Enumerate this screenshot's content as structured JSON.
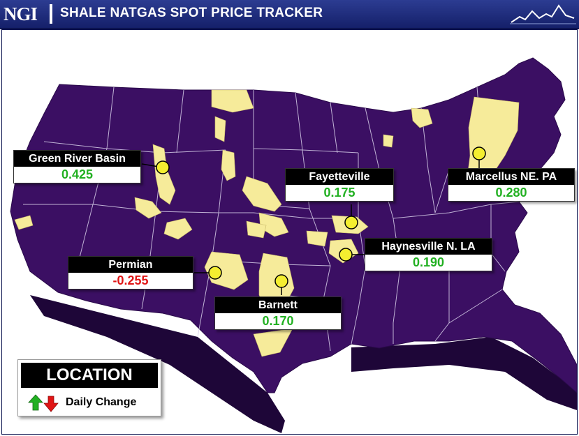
{
  "header": {
    "logo": "NGI",
    "title": "SHALE NATGAS SPOT PRICE TRACKER"
  },
  "colors": {
    "header_bg": "#1f2d80",
    "map_fill": "#3b0f63",
    "shale_fill": "#f6eb9a",
    "positive": "#22b022",
    "negative": "#e01515"
  },
  "locations": [
    {
      "name": "Green River Basin",
      "change": "0.425",
      "direction": "up"
    },
    {
      "name": "Fayetteville",
      "change": "0.175",
      "direction": "up"
    },
    {
      "name": "Marcellus NE. PA",
      "change": "0.280",
      "direction": "up"
    },
    {
      "name": "Haynesville N. LA",
      "change": "0.190",
      "direction": "up"
    },
    {
      "name": "Permian",
      "change": "-0.255",
      "direction": "down"
    },
    {
      "name": "Barnett",
      "change": "0.170",
      "direction": "up"
    }
  ],
  "legend": {
    "title": "LOCATION",
    "label": "Daily Change",
    "up_icon": "green-up-arrow-icon",
    "down_icon": "red-down-arrow-icon"
  }
}
